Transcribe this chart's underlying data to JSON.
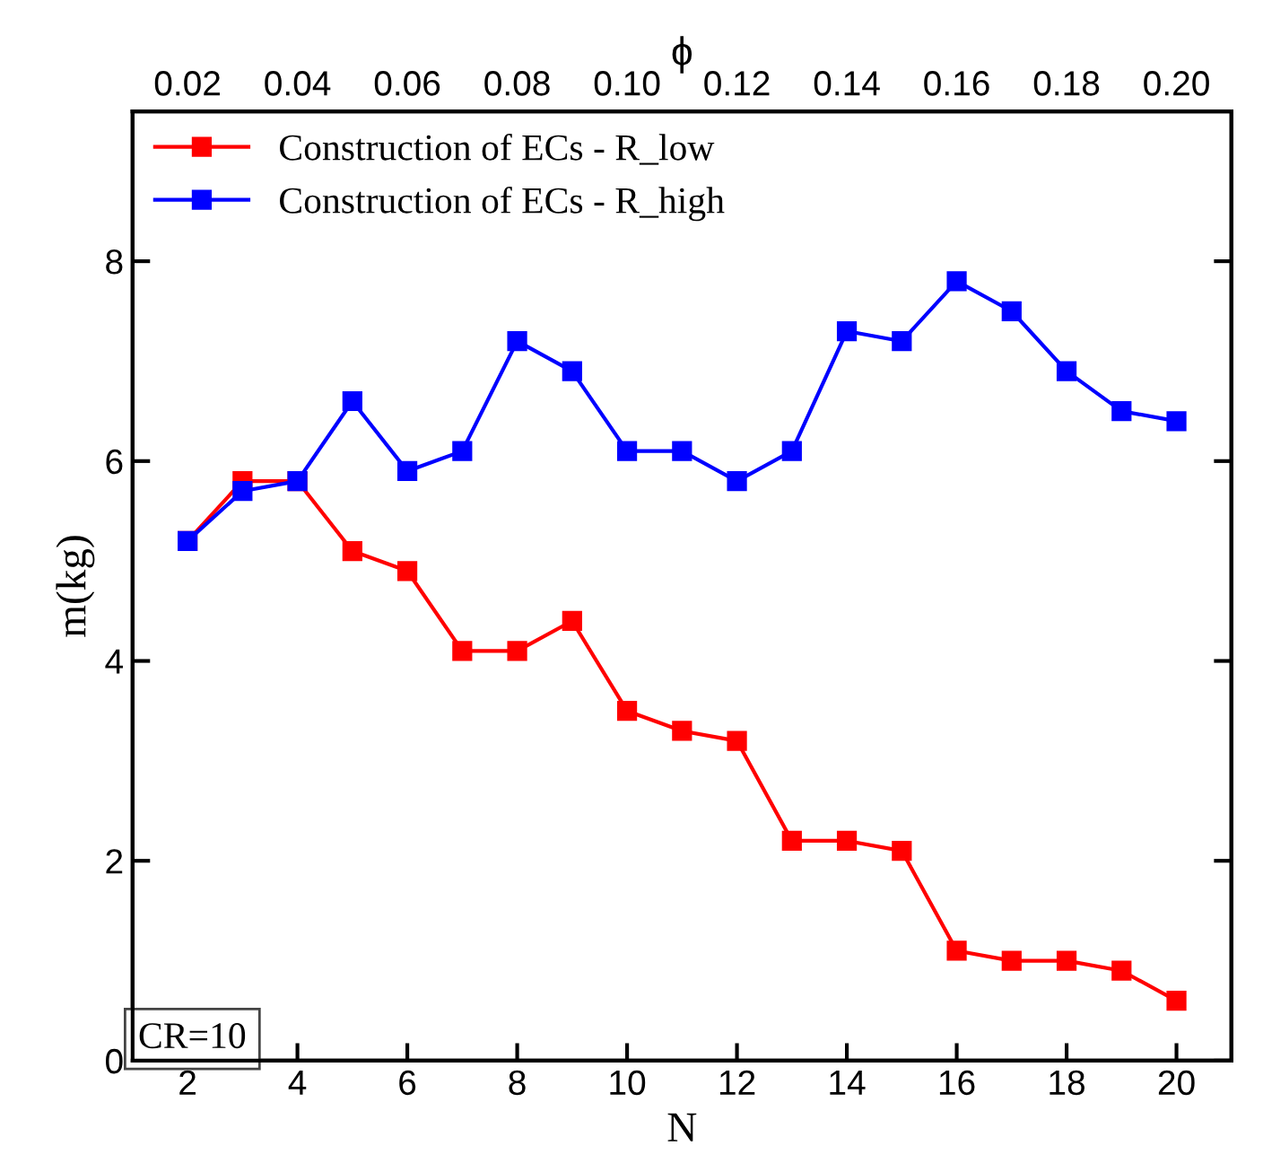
{
  "chart_data": {
    "type": "line",
    "xlabel": "N",
    "ylabel": "m(kg)",
    "x2label": "ϕ",
    "x": [
      2,
      3,
      4,
      5,
      6,
      7,
      8,
      9,
      10,
      11,
      12,
      13,
      14,
      15,
      16,
      17,
      18,
      19,
      20
    ],
    "series": [
      {
        "name": "Construction of ECs - R_low",
        "color": "#ff0000",
        "values": [
          5.2,
          5.8,
          5.8,
          5.1,
          4.9,
          4.1,
          4.1,
          4.4,
          3.5,
          3.3,
          3.2,
          2.2,
          2.2,
          2.1,
          1.1,
          1.0,
          1.0,
          0.9,
          0.6
        ]
      },
      {
        "name": "Construction of ECs - R_high",
        "color": "#0000ff",
        "values": [
          5.2,
          5.7,
          5.8,
          6.6,
          5.9,
          6.1,
          7.2,
          6.9,
          6.1,
          6.1,
          5.8,
          6.1,
          7.3,
          7.2,
          7.8,
          7.5,
          6.9,
          6.5,
          6.4
        ]
      }
    ],
    "xlim": [
      1,
      21
    ],
    "xticks": [
      2,
      4,
      6,
      8,
      10,
      12,
      14,
      16,
      18,
      20
    ],
    "x2lim": [
      0.01,
      0.21
    ],
    "x2ticks": [
      {
        "value": 0.02,
        "label": "0.02"
      },
      {
        "value": 0.04,
        "label": "0.04"
      },
      {
        "value": 0.06,
        "label": "0.06"
      },
      {
        "value": 0.08,
        "label": "0.08"
      },
      {
        "value": 0.1,
        "label": "0.10"
      },
      {
        "value": 0.12,
        "label": "0.12"
      },
      {
        "value": 0.14,
        "label": "0.14"
      },
      {
        "value": 0.16,
        "label": "0.16"
      },
      {
        "value": 0.18,
        "label": "0.18"
      },
      {
        "value": 0.2,
        "label": "0.20"
      }
    ],
    "ylim": [
      0,
      9.5
    ],
    "yticks": [
      0,
      2,
      4,
      6,
      8
    ],
    "annotations": [
      "CR=10"
    ],
    "marker": "square",
    "line_style": "solid",
    "grid": false,
    "legend": "top left"
  }
}
